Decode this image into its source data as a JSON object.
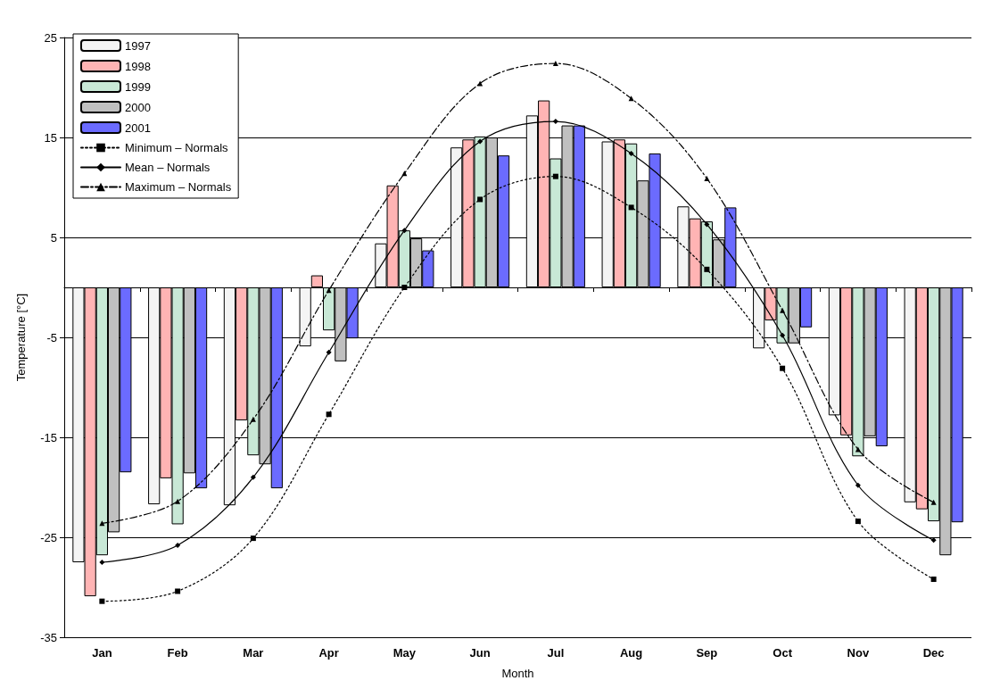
{
  "chart_data": {
    "type": "bar",
    "xlabel": "Month",
    "ylabel": "Temperature [°C]",
    "categories": [
      "Jan",
      "Feb",
      "Mar",
      "Apr",
      "May",
      "Jun",
      "Jul",
      "Aug",
      "Sep",
      "Oct",
      "Nov",
      "Dec"
    ],
    "series": [
      {
        "name": "1997",
        "color": "#f4f4f4",
        "values": [
          -27.5,
          -21.7,
          -21.8,
          -5.9,
          4.4,
          14.0,
          17.2,
          14.6,
          8.1,
          -6.1,
          -12.8,
          -21.5
        ]
      },
      {
        "name": "1998",
        "color": "#ffb4b4",
        "values": [
          -30.9,
          -19.1,
          -13.3,
          1.2,
          10.2,
          14.8,
          18.7,
          14.8,
          6.9,
          -3.3,
          -14.8,
          -22.2
        ]
      },
      {
        "name": "1999",
        "color": "#c8e8d6",
        "values": [
          -26.8,
          -23.7,
          -16.8,
          -4.3,
          5.7,
          15.1,
          12.9,
          14.4,
          6.6,
          -5.6,
          -16.9,
          -23.4
        ]
      },
      {
        "name": "2000",
        "color": "#c0c0c0",
        "values": [
          -24.5,
          -18.6,
          -17.7,
          -7.4,
          4.9,
          15.0,
          16.2,
          10.7,
          4.8,
          -5.6,
          -14.9,
          -26.8
        ]
      },
      {
        "name": "2001",
        "color": "#6b6bff",
        "values": [
          -18.5,
          -20.1,
          -20.1,
          -5.1,
          3.7,
          13.2,
          16.2,
          13.4,
          8.0,
          -4.0,
          -15.9,
          -23.5
        ]
      },
      {
        "name": "Minimum – Normals",
        "type": "line",
        "color": "#000000",
        "marker": "square",
        "line_style": "dotted",
        "values": [
          -31.4,
          -30.4,
          -25.1,
          -12.7,
          0.0,
          8.8,
          11.1,
          8.0,
          1.8,
          -8.1,
          -23.4,
          -29.2
        ]
      },
      {
        "name": "Mean – Normals",
        "type": "line",
        "color": "#000000",
        "marker": "diamond",
        "line_style": "solid",
        "values": [
          -27.5,
          -25.8,
          -19.0,
          -6.5,
          5.7,
          14.6,
          16.6,
          13.4,
          6.3,
          -4.8,
          -19.8,
          -25.3
        ]
      },
      {
        "name": "Maximum – Normals",
        "type": "line",
        "color": "#000000",
        "marker": "triangle",
        "line_style": "dashed",
        "values": [
          -23.6,
          -21.4,
          -13.2,
          -0.3,
          11.4,
          20.4,
          22.4,
          18.9,
          10.9,
          -2.3,
          -16.2,
          -21.5
        ]
      }
    ],
    "ylim": [
      -35,
      25
    ],
    "yticks": [
      -35,
      -25,
      -15,
      -5,
      5,
      15,
      25
    ],
    "grid": "y",
    "legend": "top left"
  }
}
